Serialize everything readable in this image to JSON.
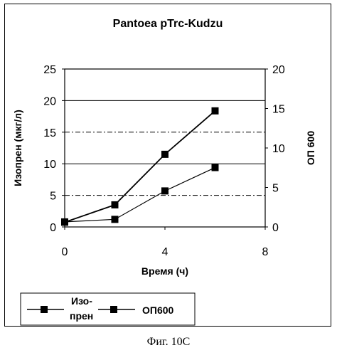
{
  "chart_data": {
    "type": "line",
    "title": "Pantoea pTrc-Kudzu",
    "xlabel": "Время (ч)",
    "ylabel": "Изопрен (мкг/л)",
    "y2label": "ОП 600",
    "xlim": [
      0,
      8
    ],
    "ylim": [
      0,
      25
    ],
    "y2lim": [
      0,
      20
    ],
    "x_ticks": [
      "0",
      "4",
      "8"
    ],
    "y_ticks": [
      "0",
      "5",
      "10",
      "15",
      "20",
      "25"
    ],
    "y2_ticks": [
      "0",
      "5",
      "10",
      "15",
      "20"
    ],
    "grid": "horizontal",
    "legend_position": "bottom",
    "series": [
      {
        "name": "Изо-\nпрен",
        "axis": "left",
        "x": [
          0,
          2,
          4,
          6
        ],
        "values": [
          0.8,
          1.2,
          5.7,
          9.4
        ]
      },
      {
        "name": "ОП600",
        "axis": "right",
        "x": [
          0,
          2,
          4,
          6
        ],
        "values": [
          0.6,
          2.8,
          9.2,
          14.7
        ]
      }
    ]
  },
  "legend": {
    "item1_line1": "Изо-",
    "item1_line2": "прен",
    "item2": "ОП600"
  },
  "caption": "Фиг. 10С"
}
